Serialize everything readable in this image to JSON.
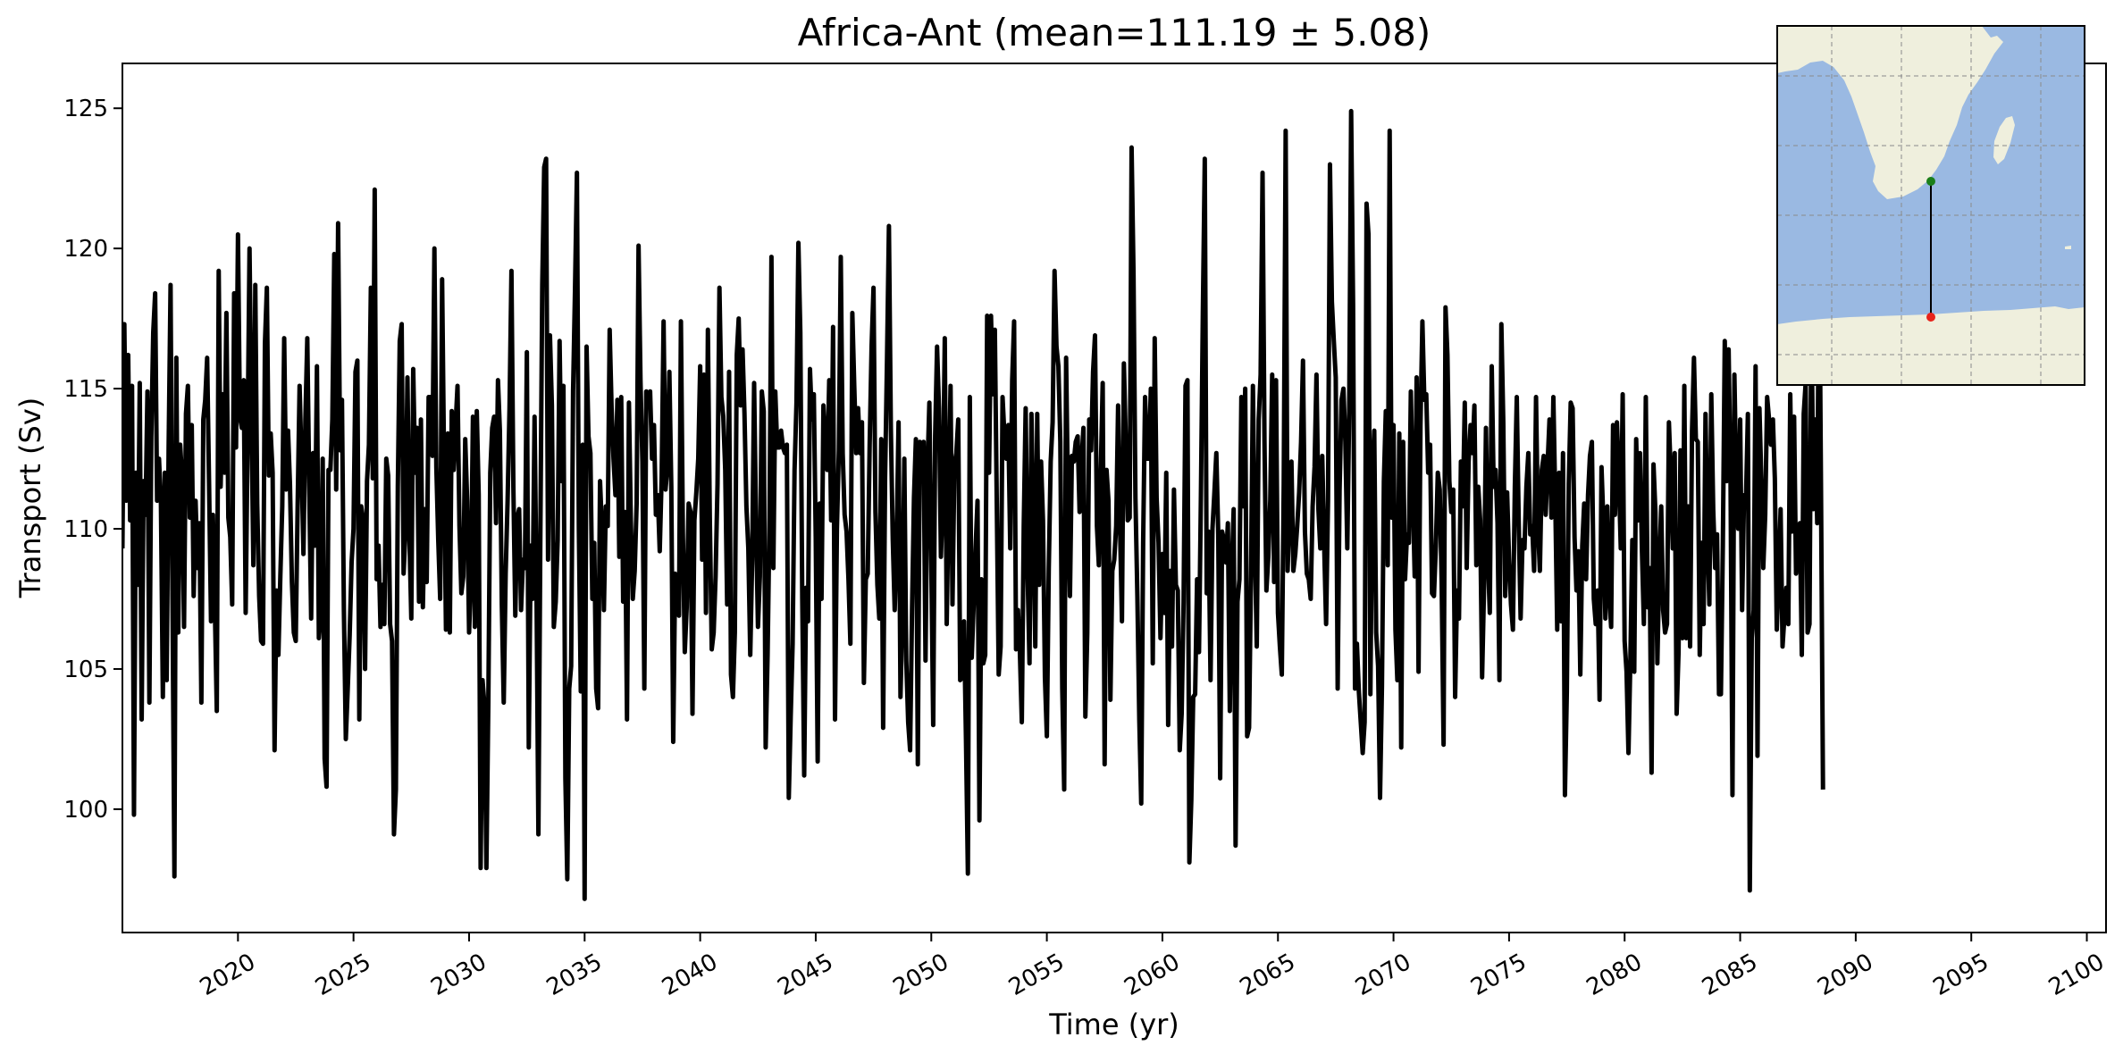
{
  "chart_data": {
    "type": "line",
    "title": "Africa-Ant (mean=111.19 ± 5.08)",
    "xlabel": "Time (yr)",
    "ylabel": "Transport (Sv)",
    "xlim": [
      2015.0,
      2100.83
    ],
    "ylim": [
      95.6,
      126.6
    ],
    "x_ticks": [
      2020,
      2025,
      2030,
      2035,
      2040,
      2045,
      2050,
      2055,
      2060,
      2065,
      2070,
      2075,
      2080,
      2085,
      2090,
      2095,
      2100
    ],
    "y_ticks": [
      100,
      105,
      110,
      115,
      120,
      125
    ],
    "x_start": 2015.0,
    "x_step": 0.0833333,
    "grid": false,
    "series": [
      {
        "color": "#000000",
        "values": [
          109.3,
          117.3,
          111.0,
          116.2,
          110.3,
          115.1,
          99.8,
          112.0,
          108.0,
          115.2,
          103.2,
          111.7,
          110.5,
          114.9,
          103.8,
          113.3,
          117.0,
          118.4,
          111.0,
          112.5,
          110.9,
          104.0,
          112.0,
          104.6,
          112.9,
          118.7,
          107.5,
          97.6,
          116.1,
          106.3,
          113.0,
          111.8,
          106.5,
          114.1,
          115.1,
          110.4,
          113.7,
          107.6,
          111.0,
          108.6,
          110.2,
          103.8,
          113.9,
          114.6,
          116.1,
          111.6,
          106.7,
          110.5,
          107.2,
          103.5,
          119.2,
          111.5,
          114.8,
          112.0,
          117.7,
          110.4,
          109.7,
          107.3,
          118.4,
          112.9,
          120.5,
          114.0,
          113.6,
          115.3,
          107.0,
          113.2,
          120.0,
          114.0,
          108.7,
          118.7,
          110.9,
          107.6,
          106.0,
          105.9,
          116.6,
          118.6,
          111.9,
          113.4,
          112.0,
          102.1,
          107.8,
          105.5,
          108.3,
          110.8,
          116.8,
          111.4,
          113.5,
          111.6,
          108.1,
          106.3,
          106.0,
          110.9,
          115.1,
          112.4,
          109.1,
          113.9,
          116.8,
          111.5,
          106.8,
          112.7,
          109.4,
          115.8,
          106.1,
          107.0,
          112.5,
          101.8,
          100.8,
          112.1,
          112.1,
          113.9,
          119.8,
          111.4,
          120.9,
          112.8,
          114.6,
          107.1,
          102.5,
          104.3,
          106.2,
          108.8,
          110.0,
          115.6,
          116.0,
          103.2,
          110.8,
          110.3,
          105.0,
          111.7,
          113.0,
          118.6,
          111.8,
          122.1,
          108.2,
          109.4,
          106.5,
          108.0,
          106.6,
          112.5,
          111.9,
          106.6,
          106.0,
          99.1,
          100.7,
          111.5,
          116.7,
          117.3,
          108.4,
          110.0,
          115.4,
          109.8,
          106.8,
          115.7,
          112.0,
          113.6,
          107.4,
          113.9,
          107.2,
          110.7,
          108.1,
          114.7,
          114.7,
          112.6,
          120.0,
          112.2,
          109.6,
          107.5,
          118.9,
          112.4,
          106.4,
          113.4,
          106.3,
          114.2,
          112.1,
          113.7,
          115.1,
          110.1,
          107.7,
          108.3,
          113.2,
          111.0,
          106.3,
          108.3,
          114.0,
          106.5,
          114.2,
          111.2,
          97.9,
          104.6,
          103.7,
          97.9,
          103.8,
          112.0,
          113.6,
          114.0,
          110.2,
          115.3,
          113.5,
          107.3,
          103.8,
          108.4,
          111.0,
          114.3,
          119.2,
          111.5,
          106.9,
          110.4,
          110.7,
          107.1,
          108.9,
          108.6,
          116.3,
          102.2,
          109.4,
          107.5,
          114.0,
          107.9,
          99.1,
          109.7,
          118.7,
          122.9,
          123.2,
          108.9,
          116.9,
          114.4,
          106.5,
          107.4,
          109.6,
          116.7,
          111.7,
          115.1,
          101.1,
          97.5,
          104.3,
          105.1,
          114.9,
          118.5,
          122.7,
          110.0,
          104.2,
          113.0,
          96.8,
          116.5,
          113.3,
          112.7,
          107.5,
          109.5,
          104.3,
          103.6,
          111.7,
          110.0,
          107.1,
          110.8,
          110.1,
          117.1,
          114.3,
          112.5,
          111.2,
          114.6,
          109.0,
          114.7,
          107.4,
          110.6,
          103.2,
          114.5,
          110.3,
          107.5,
          108.5,
          110.9,
          120.1,
          115.3,
          112.4,
          104.3,
          114.9,
          114.4,
          114.9,
          112.5,
          113.7,
          110.5,
          111.2,
          109.2,
          111.9,
          117.4,
          111.4,
          112.2,
          115.6,
          111.5,
          102.4,
          108.4,
          108.3,
          106.9,
          117.4,
          109.9,
          105.6,
          107.2,
          110.9,
          110.6,
          103.4,
          110.3,
          111.3,
          112.5,
          115.8,
          108.9,
          115.5,
          107.0,
          117.1,
          110.4,
          105.7,
          106.3,
          108.3,
          111.6,
          118.6,
          114.7,
          114.0,
          112.1,
          107.3,
          115.6,
          104.8,
          104.0,
          106.3,
          116.2,
          117.5,
          114.4,
          116.4,
          114.1,
          110.8,
          109.3,
          105.5,
          108.9,
          115.2,
          110.3,
          106.5,
          108.3,
          114.9,
          114.2,
          102.2,
          105.5,
          110.4,
          119.7,
          108.6,
          114.9,
          112.9,
          112.9,
          113.5,
          112.9,
          112.7,
          113.0,
          100.4,
          103.3,
          105.9,
          112.1,
          114.5,
          120.2,
          117.0,
          107.5,
          101.2,
          107.9,
          106.7,
          115.7,
          113.9,
          114.8,
          109.7,
          101.7,
          110.9,
          107.5,
          114.4,
          112.9,
          112.1,
          115.3,
          110.3,
          117.2,
          103.2,
          110.0,
          112.8,
          119.7,
          112.7,
          110.5,
          109.9,
          108.2,
          105.9,
          117.7,
          115.1,
          112.7,
          114.3,
          112.7,
          113.8,
          104.5,
          108.2,
          108.4,
          113.0,
          116.5,
          118.6,
          110.6,
          108.0,
          106.8,
          113.2,
          102.9,
          111.8,
          116.0,
          120.8,
          113.6,
          109.6,
          107.1,
          109.5,
          113.8,
          104.0,
          106.9,
          112.5,
          105.3,
          103.1,
          102.1,
          107.1,
          111.1,
          113.2,
          101.6,
          113.1,
          112.4,
          113.1,
          105.3,
          112.1,
          114.5,
          108.8,
          103.0,
          113.3,
          116.5,
          114.3,
          109.0,
          111.1,
          116.8,
          106.6,
          111.1,
          115.1,
          107.3,
          112.3,
          112.7,
          113.9,
          104.6,
          104.7,
          106.7,
          102.5,
          97.7,
          114.7,
          105.4,
          107.3,
          109.3,
          111.0,
          99.6,
          108.2,
          105.2,
          105.5,
          117.6,
          112.0,
          117.6,
          114.8,
          117.1,
          110.9,
          104.8,
          105.8,
          114.7,
          113.3,
          112.5,
          113.7,
          109.3,
          115.3,
          117.4,
          105.7,
          107.1,
          105.6,
          103.1,
          110.1,
          114.3,
          108.4,
          105.2,
          114.1,
          110.3,
          105.8,
          114.1,
          108.0,
          112.4,
          110.3,
          104.7,
          102.6,
          108.6,
          112.4,
          113.8,
          119.2,
          116.5,
          115.8,
          113.1,
          104.3,
          100.7,
          116.1,
          110.9,
          107.6,
          112.6,
          112.4,
          113.1,
          113.3,
          110.6,
          112.4,
          113.6,
          103.3,
          106.3,
          113.9,
          112.8,
          115.6,
          116.9,
          110.1,
          108.7,
          112.0,
          115.2,
          101.6,
          112.1,
          111.0,
          103.9,
          108.5,
          108.9,
          110.1,
          114.4,
          110.1,
          106.7,
          115.9,
          113.1,
          110.3,
          110.4,
          123.6,
          119.1,
          111.1,
          107.6,
          103.2,
          100.2,
          109.5,
          114.7,
          112.5,
          112.5,
          115.0,
          105.2,
          116.8,
          111.1,
          109.5,
          106.1,
          109.1,
          107.0,
          112.0,
          103.0,
          108.5,
          105.8,
          111.4,
          108.0,
          107.8,
          102.1,
          103.4,
          107.4,
          115.1,
          115.3,
          98.1,
          100.3,
          104.0,
          104.1,
          108.2,
          105.6,
          111.2,
          117.7,
          123.2,
          107.7,
          109.9,
          104.6,
          110.0,
          111.3,
          112.7,
          109.8,
          101.1,
          109.9,
          109.6,
          108.8,
          110.2,
          103.5,
          108.5,
          110.7,
          98.7,
          107.4,
          108.2,
          114.7,
          110.8,
          115.0,
          102.6,
          102.9,
          108.4,
          115.1,
          109.4,
          105.8,
          113.9,
          115.5,
          122.7,
          113.1,
          107.8,
          109.0,
          111.0,
          115.5,
          108.1,
          115.3,
          107.0,
          105.8,
          104.8,
          111.6,
          124.2,
          108.5,
          110.6,
          112.4,
          108.5,
          109.1,
          110.1,
          111.3,
          113.1,
          116.0,
          109.9,
          108.4,
          108.2,
          107.5,
          110.8,
          112.2,
          115.5,
          110.7,
          109.3,
          112.6,
          109.4,
          106.6,
          111.0,
          123.0,
          118.1,
          116.7,
          115.4,
          104.3,
          111.4,
          114.6,
          115.0,
          113.1,
          109.3,
          114.3,
          124.9,
          118.0,
          104.3,
          105.9,
          104.2,
          103.1,
          102.0,
          103.1,
          121.6,
          120.5,
          104.1,
          111.9,
          113.5,
          106.3,
          105.1,
          100.4,
          104.4,
          111.7,
          114.2,
          108.7,
          124.2,
          110.4,
          113.7,
          106.4,
          104.6,
          113.4,
          102.2,
          113.1,
          108.2,
          109.8,
          109.5,
          114.9,
          111.4,
          108.3,
          115.4,
          104.9,
          113.7,
          117.4,
          114.6,
          114.8,
          112.0,
          113.0,
          107.7,
          107.6,
          109.4,
          112.0,
          111.4,
          108.1,
          102.3,
          117.9,
          116.2,
          111.7,
          110.6,
          111.4,
          104.0,
          107.8,
          106.8,
          112.4,
          110.8,
          114.5,
          108.6,
          112.4,
          113.7,
          112.7,
          114.4,
          108.7,
          111.5,
          110.3,
          104.7,
          107.9,
          113.6,
          109.0,
          107.0,
          115.8,
          111.5,
          112.1,
          110.2,
          104.6,
          117.3,
          113.8,
          107.6,
          111.3,
          108.9,
          107.3,
          106.4,
          111.5,
          114.7,
          110.3,
          106.8,
          109.6,
          109.3,
          111.5,
          112.7,
          109.8,
          110.1,
          108.5,
          114.7,
          110.1,
          108.5,
          112.1,
          112.6,
          110.5,
          112.3,
          113.9,
          110.4,
          114.7,
          111.0,
          106.4,
          112.0,
          106.7,
          112.7,
          100.5,
          104.2,
          111.6,
          114.5,
          114.3,
          109.7,
          107.8,
          109.2,
          104.8,
          109.4,
          110.9,
          108.2,
          111.2,
          112.6,
          113.1,
          107.5,
          106.6,
          107.8,
          103.9,
          112.2,
          110.2,
          106.8,
          110.8,
          107.7,
          106.5,
          113.7,
          110.5,
          113.8,
          111.9,
          109.3,
          114.8,
          106.0,
          104.9,
          102.0,
          105.4,
          109.6,
          104.9,
          113.2,
          110.3,
          112.7,
          109.2,
          106.6,
          114.7,
          107.2,
          108.6,
          101.3,
          112.3,
          110.6,
          105.2,
          108.6,
          110.8,
          107.1,
          106.3,
          106.6,
          113.8,
          111.9,
          109.3,
          112.7,
          103.4,
          105.6,
          112.8,
          106.1,
          115.1,
          106.1,
          110.8,
          105.8,
          113.5,
          116.1,
          113.2,
          113.1,
          105.5,
          109.5,
          106.6,
          114.1,
          109.8,
          107.3,
          114.8,
          110.7,
          108.6,
          109.8,
          104.1,
          104.1,
          109.4,
          116.7,
          111.7,
          116.4,
          111.7,
          100.5,
          115.5,
          111.6,
          110.0,
          113.9,
          107.1,
          111.2,
          111.0,
          114.1,
          97.1,
          106.1,
          107.1,
          115.8,
          101.9,
          114.3,
          111.7,
          108.6,
          110.5,
          114.7,
          113.9,
          113.0,
          113.9,
          111.8,
          106.4,
          108.4,
          110.7,
          105.8,
          106.9,
          107.9,
          106.6,
          114.8,
          109.9,
          114.0,
          108.4,
          109.7,
          110.2,
          105.5,
          114.1,
          115.2,
          106.3,
          106.6,
          118.0,
          110.7,
          113.9,
          110.2,
          120.7,
          111.1,
          100.7
        ]
      }
    ],
    "inset_map": {
      "land_color": "#efefdd",
      "ocean_color": "#9ab9e2",
      "section_start_color": "#1a7f1a",
      "section_end_color": "#e8231b"
    }
  }
}
